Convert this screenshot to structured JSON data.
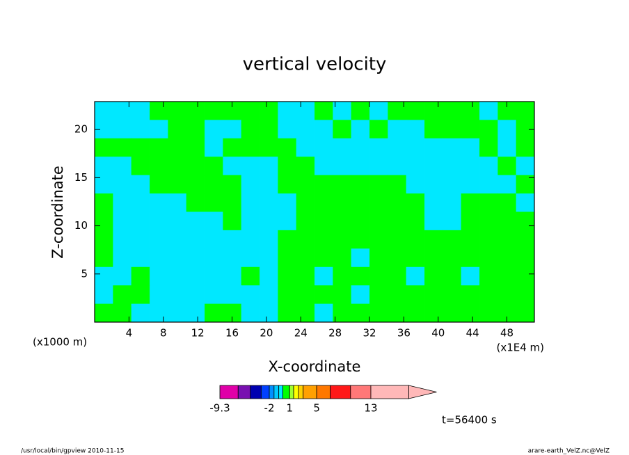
{
  "chart_data": {
    "type": "contour",
    "title": "vertical velocity",
    "xlabel": "X-coordinate",
    "ylabel": "Z-coordinate",
    "xunit": "(x1000 m)",
    "xunit_right": "(x1E4 m)",
    "annotation": "t=56400 s",
    "footer_left": "/usr/local/bin/gpview  2010-11-15",
    "footer_right": "arare-earth_VelZ.nc@VelZ",
    "xlim": [
      0,
      51.2
    ],
    "ylim": [
      0,
      22.9
    ],
    "xticks": [
      4,
      8,
      12,
      16,
      20,
      24,
      28,
      32,
      36,
      40,
      44,
      48
    ],
    "yticks": [
      5,
      10,
      15,
      20
    ],
    "x": [
      1.07,
      3.2,
      5.33,
      7.47,
      9.6,
      11.73,
      13.87,
      16,
      18.13,
      20.27,
      22.4,
      24.53,
      26.67,
      28.8,
      30.93,
      33.07,
      35.2,
      37.33,
      39.47,
      41.6,
      43.73,
      45.87,
      48,
      50.13
    ],
    "y": [
      21.95,
      20.04,
      18.13,
      16.22,
      14.31,
      12.4,
      10.5,
      8.59,
      6.68,
      4.77,
      2.86,
      0.95
    ],
    "z": [
      [
        -0.3,
        -0.3,
        -0.3,
        0.5,
        0.5,
        0.5,
        0.5,
        0.5,
        0.5,
        0.5,
        -0.3,
        -0.3,
        0.5,
        -0.3,
        0.5,
        -0.3,
        0.5,
        0.5,
        0.5,
        0.5,
        0.5,
        -0.3,
        0.5,
        0.5
      ],
      [
        -0.3,
        -0.3,
        -0.3,
        -0.3,
        0.5,
        0.5,
        -0.3,
        -0.3,
        0.5,
        0.5,
        -0.3,
        -0.3,
        -0.3,
        0.5,
        -0.3,
        0.5,
        -0.3,
        -0.3,
        0.5,
        0.5,
        0.5,
        0.5,
        -0.3,
        0.5
      ],
      [
        0.5,
        0.5,
        0.5,
        0.5,
        0.5,
        0.5,
        -0.3,
        0.5,
        0.5,
        0.5,
        0.5,
        -0.3,
        -0.3,
        -0.3,
        -0.3,
        -0.3,
        -0.3,
        -0.3,
        -0.3,
        -0.3,
        -0.3,
        0.5,
        -0.3,
        0.5
      ],
      [
        -0.3,
        -0.3,
        0.5,
        0.5,
        0.5,
        0.5,
        0.5,
        -0.3,
        -0.3,
        -0.3,
        0.5,
        0.5,
        -0.3,
        -0.3,
        -0.3,
        -0.3,
        -0.3,
        -0.3,
        -0.3,
        -0.3,
        -0.3,
        -0.3,
        0.5,
        -0.3
      ],
      [
        -0.3,
        -0.3,
        -0.3,
        0.5,
        0.5,
        0.5,
        0.5,
        0.5,
        -0.3,
        -0.3,
        0.5,
        0.5,
        0.5,
        0.5,
        0.5,
        0.5,
        0.5,
        -0.3,
        -0.3,
        -0.3,
        -0.3,
        -0.3,
        -0.3,
        0.5
      ],
      [
        0.5,
        -0.3,
        -0.3,
        -0.3,
        -0.3,
        0.5,
        0.5,
        0.5,
        -0.3,
        -0.3,
        -0.3,
        0.5,
        0.5,
        0.5,
        0.5,
        0.5,
        0.5,
        0.5,
        -0.3,
        -0.3,
        0.5,
        0.5,
        0.5,
        -0.3
      ],
      [
        0.5,
        -0.3,
        -0.3,
        -0.3,
        -0.3,
        -0.3,
        -0.3,
        0.5,
        -0.3,
        -0.3,
        -0.3,
        0.5,
        0.5,
        0.5,
        0.5,
        0.5,
        0.5,
        0.5,
        -0.3,
        -0.3,
        0.5,
        0.5,
        0.5,
        0.5
      ],
      [
        0.5,
        -0.3,
        -0.3,
        -0.3,
        -0.3,
        -0.3,
        -0.3,
        -0.3,
        -0.3,
        -0.3,
        0.5,
        0.5,
        0.5,
        0.5,
        0.5,
        0.5,
        0.5,
        0.5,
        0.5,
        0.5,
        0.5,
        0.5,
        0.5,
        0.5
      ],
      [
        0.5,
        -0.3,
        -0.3,
        -0.3,
        -0.3,
        -0.3,
        -0.3,
        -0.3,
        -0.3,
        -0.3,
        0.5,
        0.5,
        0.5,
        0.5,
        -0.3,
        0.5,
        0.5,
        0.5,
        0.5,
        0.5,
        0.5,
        0.5,
        0.5,
        0.5
      ],
      [
        -0.3,
        -0.3,
        0.5,
        -0.3,
        -0.3,
        -0.3,
        -0.3,
        -0.3,
        0.5,
        -0.3,
        0.5,
        0.5,
        -0.3,
        0.5,
        0.5,
        0.5,
        0.5,
        -0.3,
        0.5,
        0.5,
        -0.3,
        0.5,
        0.5,
        0.5
      ],
      [
        -0.3,
        0.5,
        0.5,
        -0.3,
        -0.3,
        -0.3,
        -0.3,
        -0.3,
        -0.3,
        -0.3,
        0.5,
        0.5,
        0.5,
        0.5,
        -0.3,
        0.5,
        0.5,
        0.5,
        0.5,
        0.5,
        0.5,
        0.5,
        0.5,
        0.5
      ],
      [
        0.5,
        0.5,
        -0.3,
        -0.3,
        -0.3,
        -0.3,
        0.5,
        0.5,
        -0.3,
        -0.3,
        0.5,
        0.5,
        -0.3,
        0.5,
        0.5,
        0.5,
        0.5,
        0.5,
        0.5,
        0.5,
        0.5,
        0.5,
        0.5,
        0.5
      ]
    ],
    "levels": [
      -9.3,
      -6.6,
      -4.8,
      -3.2,
      -2,
      -1.3,
      -0.6,
      0,
      1,
      1.6,
      2.3,
      3,
      5,
      7,
      10,
      13,
      18.6
    ],
    "colors": [
      "#e000a8",
      "#7810b0",
      "#0000b0",
      "#0040ff",
      "#0090ff",
      "#00c8ff",
      "#00e8ff",
      "#00ff00",
      "#a0ff30",
      "#ffff00",
      "#ffd000",
      "#ffa000",
      "#ff7800",
      "#ff1818",
      "#ff7878",
      "#ffb8b8"
    ],
    "colorbar_ticks": [
      -9.3,
      -2,
      1,
      5,
      13
    ]
  }
}
